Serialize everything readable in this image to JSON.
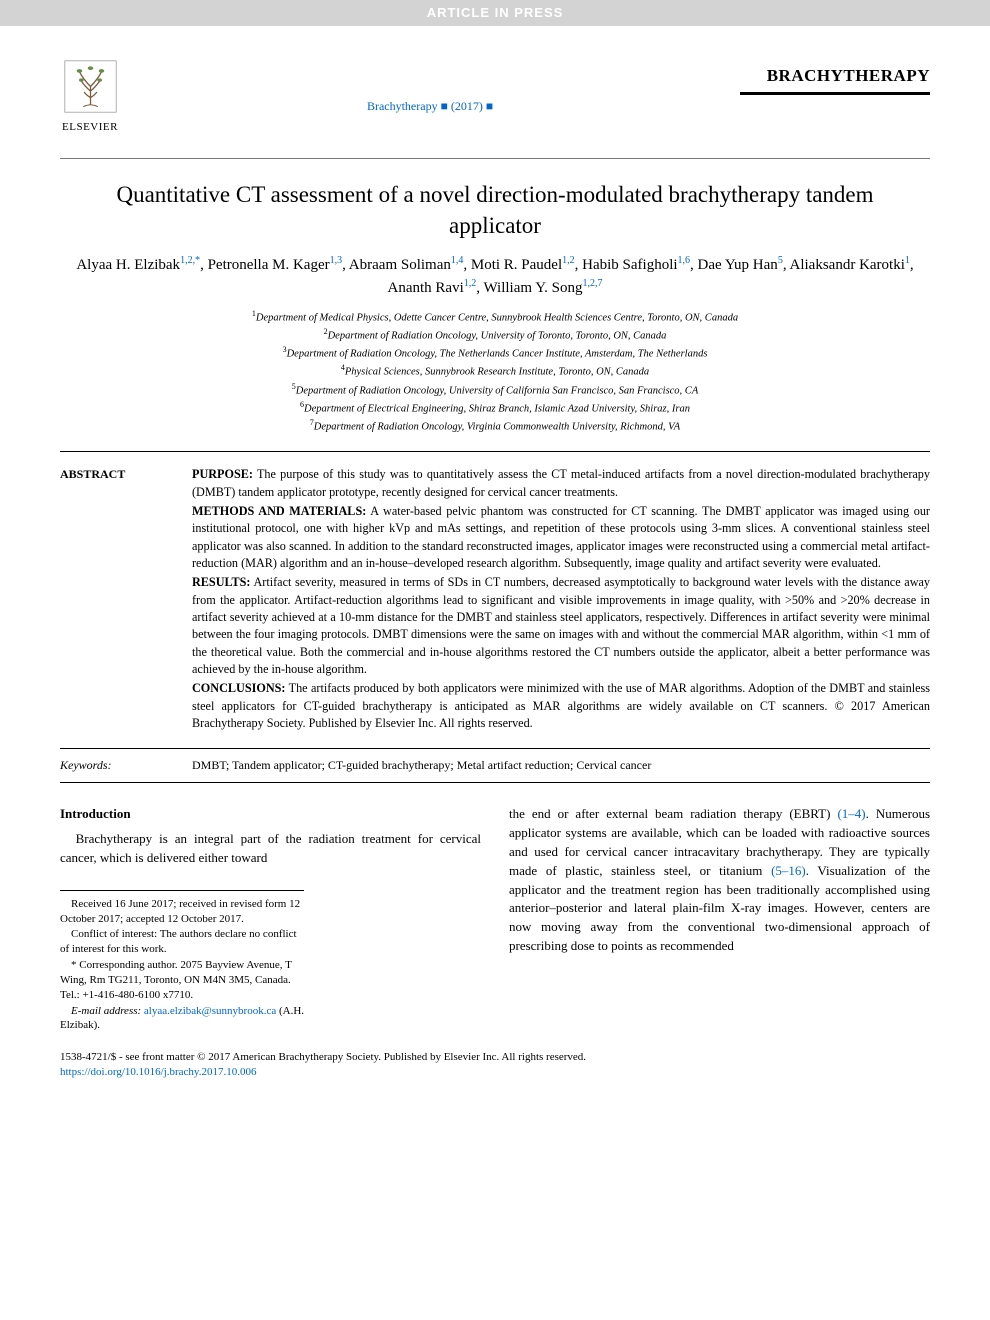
{
  "banner": "ARTICLE IN PRESS",
  "publisher": {
    "name": "ELSEVIER"
  },
  "journal": {
    "title": "BRACHYTHERAPY",
    "ref_line": "Brachytherapy ■ (2017) ■"
  },
  "article": {
    "title": "Quantitative CT assessment of a novel direction-modulated brachytherapy tandem applicator"
  },
  "authors": [
    {
      "name": "Alyaa H. Elzibak",
      "aff": "1,2,",
      "corr": "*"
    },
    {
      "name": "Petronella M. Kager",
      "aff": "1,3"
    },
    {
      "name": "Abraam Soliman",
      "aff": "1,4"
    },
    {
      "name": "Moti R. Paudel",
      "aff": "1,2"
    },
    {
      "name": "Habib Safigholi",
      "aff": "1,6"
    },
    {
      "name": "Dae Yup Han",
      "aff": "5"
    },
    {
      "name": "Aliaksandr Karotki",
      "aff": "1"
    },
    {
      "name": "Ananth Ravi",
      "aff": "1,2"
    },
    {
      "name": "William Y. Song",
      "aff": "1,2,7"
    }
  ],
  "affiliations": [
    {
      "num": "1",
      "text": "Department of Medical Physics, Odette Cancer Centre, Sunnybrook Health Sciences Centre, Toronto, ON, Canada"
    },
    {
      "num": "2",
      "text": "Department of Radiation Oncology, University of Toronto, Toronto, ON, Canada"
    },
    {
      "num": "3",
      "text": "Department of Radiation Oncology, The Netherlands Cancer Institute, Amsterdam, The Netherlands"
    },
    {
      "num": "4",
      "text": "Physical Sciences, Sunnybrook Research Institute, Toronto, ON, Canada"
    },
    {
      "num": "5",
      "text": "Department of Radiation Oncology, University of California San Francisco, San Francisco, CA"
    },
    {
      "num": "6",
      "text": "Department of Electrical Engineering, Shiraz Branch, Islamic Azad University, Shiraz, Iran"
    },
    {
      "num": "7",
      "text": "Department of Radiation Oncology, Virginia Commonwealth University, Richmond, VA"
    }
  ],
  "abstract": {
    "label": "ABSTRACT",
    "purpose_head": "PURPOSE:",
    "purpose": " The purpose of this study was to quantitatively assess the CT metal-induced artifacts from a novel direction-modulated brachytherapy (DMBT) tandem applicator prototype, recently designed for cervical cancer treatments.",
    "methods_head": "METHODS AND MATERIALS:",
    "methods": " A water-based pelvic phantom was constructed for CT scanning. The DMBT applicator was imaged using our institutional protocol, one with higher kVp and mAs settings, and repetition of these protocols using 3-mm slices. A conventional stainless steel applicator was also scanned. In addition to the standard reconstructed images, applicator images were reconstructed using a commercial metal artifact-reduction (MAR) algorithm and an in-house–developed research algorithm. Subsequently, image quality and artifact severity were evaluated.",
    "results_head": "RESULTS:",
    "results": " Artifact severity, measured in terms of SDs in CT numbers, decreased asymptotically to background water levels with the distance away from the applicator. Artifact-reduction algorithms lead to significant and visible improvements in image quality, with >50% and >20% decrease in artifact severity achieved at a 10-mm distance for the DMBT and stainless steel applicators, respectively. Differences in artifact severity were minimal between the four imaging protocols. DMBT dimensions were the same on images with and without the commercial MAR algorithm, within <1 mm of the theoretical value. Both the commercial and in-house algorithms restored the CT numbers outside the applicator, albeit a better performance was achieved by the in-house algorithm.",
    "conclusions_head": "CONCLUSIONS:",
    "conclusions": " The artifacts produced by both applicators were minimized with the use of MAR algorithms. Adoption of the DMBT and stainless steel applicators for CT-guided brachytherapy is anticipated as MAR algorithms are widely available on CT scanners. © 2017 American Brachytherapy Society. Published by Elsevier Inc. All rights reserved."
  },
  "keywords": {
    "label": "Keywords:",
    "text": "DMBT; Tandem applicator; CT-guided brachytherapy; Metal artifact reduction; Cervical cancer"
  },
  "intro": {
    "heading": "Introduction",
    "col1_p1": "Brachytherapy is an integral part of the radiation treatment for cervical cancer, which is delivered either toward",
    "col2_p1_a": "the end or after external beam radiation therapy (EBRT) ",
    "col2_ref1": "(1–4)",
    "col2_p1_b": ". Numerous applicator systems are available, which can be loaded with radioactive sources and used for cervical cancer intracavitary brachytherapy. They are typically made of plastic, stainless steel, or titanium ",
    "col2_ref2": "(5–16)",
    "col2_p1_c": ". Visualization of the applicator and the treatment region has been traditionally accomplished using anterior–posterior and lateral plain-film X-ray images. However, centers are now moving away from the conventional two-dimensional approach of prescribing dose to points as recommended"
  },
  "footnotes": {
    "received": "Received 16 June 2017; received in revised form 12 October 2017; accepted 12 October 2017.",
    "conflict": "Conflict of interest: The authors declare no conflict of interest for this work.",
    "corresponding": "* Corresponding author. 2075 Bayview Avenue, T Wing, Rm TG211, Toronto, ON M4N 3M5, Canada. Tel.: +1-416-480-6100 x7710.",
    "email_label": "E-mail address: ",
    "email": "alyaa.elzibak@sunnybrook.ca",
    "email_suffix": " (A.H. Elzibak)."
  },
  "copyright": {
    "line1": "1538-4721/$ - see front matter © 2017 American Brachytherapy Society. Published by Elsevier Inc. All rights reserved.",
    "doi": "https://doi.org/10.1016/j.brachy.2017.10.006"
  },
  "colors": {
    "link": "#0066cc",
    "banner_bg": "#d3d3d3",
    "banner_fg": "#ffffff",
    "text": "#000000"
  }
}
